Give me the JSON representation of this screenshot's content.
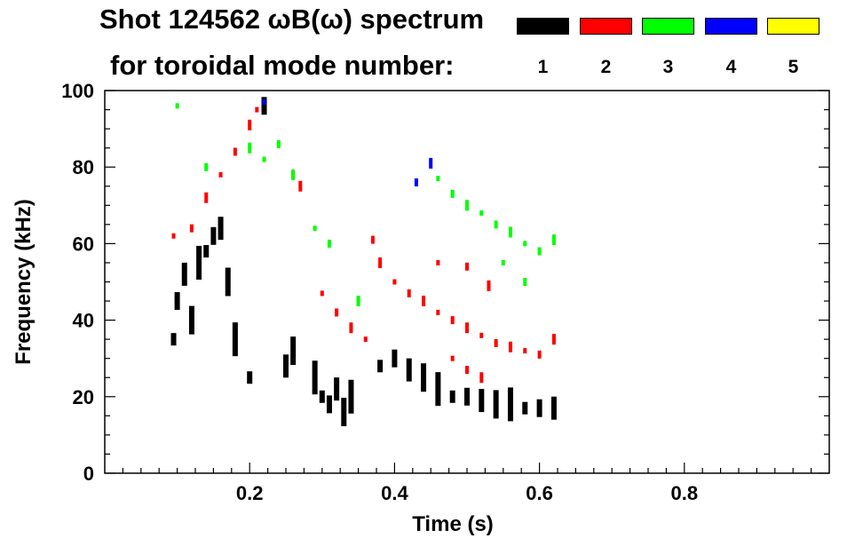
{
  "chart_data": {
    "type": "heatmap",
    "title_line1": "Shot 124562 ωB(ω) spectrum",
    "title_line2": "for toroidal mode number:",
    "xlabel": "Time (s)",
    "ylabel": "Frequency (kHz)",
    "xlim": [
      0.0,
      1.0
    ],
    "ylim": [
      0,
      100
    ],
    "xticks": [
      0.2,
      0.4,
      0.6,
      0.8
    ],
    "xtick_labels": [
      "0.2",
      "0.4",
      "0.6",
      "0.8"
    ],
    "yticks": [
      0,
      20,
      40,
      60,
      80,
      100
    ],
    "ytick_labels": [
      "0",
      "20",
      "40",
      "60",
      "80",
      "100"
    ],
    "grid": false,
    "legend_placement": "top-right",
    "legend": [
      {
        "label": "1",
        "color": "#000000"
      },
      {
        "label": "2",
        "color": "#ff0000"
      },
      {
        "label": "3",
        "color": "#00ff00"
      },
      {
        "label": "4",
        "color": "#0000ff"
      },
      {
        "label": "5",
        "color": "#ffff00"
      }
    ],
    "series": [
      {
        "mode": "1",
        "color": "#000000",
        "points": [
          [
            0.095,
            35
          ],
          [
            0.1,
            45
          ],
          [
            0.11,
            52
          ],
          [
            0.12,
            40
          ],
          [
            0.13,
            55
          ],
          [
            0.14,
            58
          ],
          [
            0.15,
            62
          ],
          [
            0.16,
            64
          ],
          [
            0.17,
            50
          ],
          [
            0.18,
            35
          ],
          [
            0.2,
            25
          ],
          [
            0.22,
            96
          ],
          [
            0.25,
            28
          ],
          [
            0.26,
            32
          ],
          [
            0.29,
            25
          ],
          [
            0.3,
            20
          ],
          [
            0.31,
            18
          ],
          [
            0.32,
            22
          ],
          [
            0.33,
            16
          ],
          [
            0.34,
            20
          ],
          [
            0.38,
            28
          ],
          [
            0.4,
            30
          ],
          [
            0.42,
            27
          ],
          [
            0.44,
            25
          ],
          [
            0.46,
            22
          ],
          [
            0.48,
            20
          ],
          [
            0.5,
            20
          ],
          [
            0.52,
            19
          ],
          [
            0.54,
            18
          ],
          [
            0.56,
            18
          ],
          [
            0.58,
            17
          ],
          [
            0.6,
            17
          ],
          [
            0.62,
            17
          ]
        ]
      },
      {
        "mode": "2",
        "color": "#ff0000",
        "points": [
          [
            0.095,
            62
          ],
          [
            0.12,
            64
          ],
          [
            0.14,
            72
          ],
          [
            0.16,
            78
          ],
          [
            0.18,
            84
          ],
          [
            0.2,
            91
          ],
          [
            0.21,
            95
          ],
          [
            0.26,
            78
          ],
          [
            0.27,
            75
          ],
          [
            0.3,
            47
          ],
          [
            0.32,
            42
          ],
          [
            0.34,
            38
          ],
          [
            0.36,
            35
          ],
          [
            0.37,
            61
          ],
          [
            0.38,
            55
          ],
          [
            0.4,
            50
          ],
          [
            0.42,
            47
          ],
          [
            0.44,
            45
          ],
          [
            0.46,
            42
          ],
          [
            0.48,
            40
          ],
          [
            0.5,
            38
          ],
          [
            0.52,
            36
          ],
          [
            0.54,
            34
          ],
          [
            0.56,
            33
          ],
          [
            0.58,
            32
          ],
          [
            0.6,
            31
          ],
          [
            0.62,
            35
          ],
          [
            0.46,
            55
          ],
          [
            0.5,
            54
          ],
          [
            0.53,
            49
          ],
          [
            0.48,
            30
          ],
          [
            0.5,
            27
          ],
          [
            0.52,
            25
          ]
        ]
      },
      {
        "mode": "3",
        "color": "#00ff00",
        "points": [
          [
            0.1,
            96
          ],
          [
            0.14,
            80
          ],
          [
            0.2,
            85
          ],
          [
            0.22,
            82
          ],
          [
            0.24,
            86
          ],
          [
            0.26,
            78
          ],
          [
            0.29,
            64
          ],
          [
            0.31,
            60
          ],
          [
            0.35,
            45
          ],
          [
            0.46,
            77
          ],
          [
            0.48,
            73
          ],
          [
            0.5,
            70
          ],
          [
            0.52,
            68
          ],
          [
            0.54,
            65
          ],
          [
            0.56,
            63
          ],
          [
            0.58,
            60
          ],
          [
            0.6,
            58
          ],
          [
            0.62,
            61
          ],
          [
            0.55,
            55
          ],
          [
            0.58,
            50
          ]
        ]
      },
      {
        "mode": "4",
        "color": "#0000ff",
        "points": [
          [
            0.22,
            97
          ],
          [
            0.43,
            76
          ],
          [
            0.45,
            81
          ]
        ]
      },
      {
        "mode": "5",
        "color": "#ffff00",
        "points": []
      }
    ]
  }
}
